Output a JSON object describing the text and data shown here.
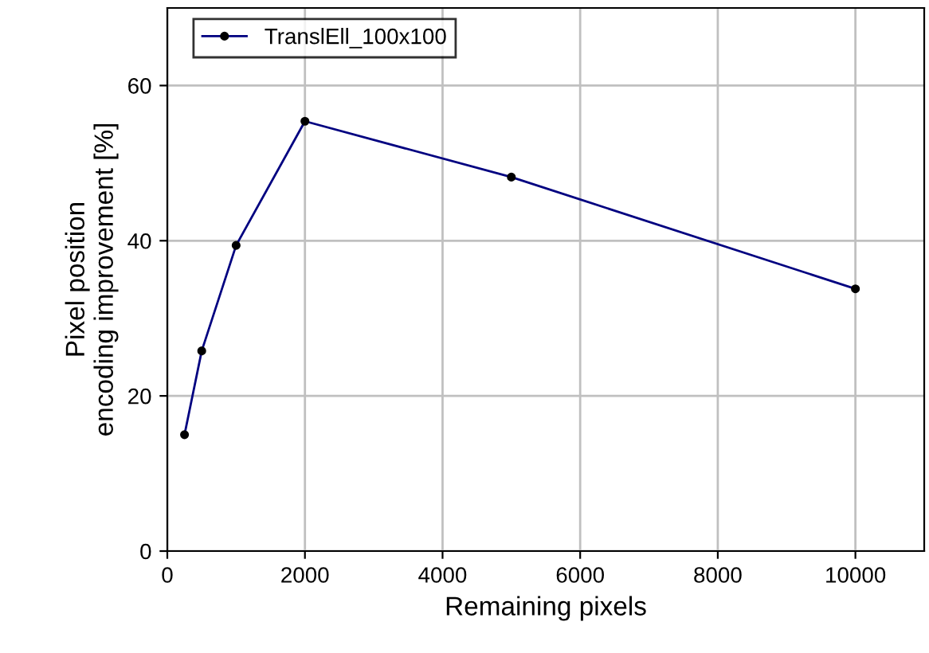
{
  "chart_data": {
    "type": "line",
    "xlabel": "Remaining pixels",
    "ylabel": "Pixel position\nencoding improvement [%]",
    "x": [
      250,
      500,
      1000,
      2000,
      5000,
      10000
    ],
    "series": [
      {
        "name": "TranslEll_100x100",
        "color": "#000080",
        "values": [
          15.0,
          25.8,
          39.4,
          55.4,
          48.2,
          33.8
        ]
      }
    ],
    "xlim": [
      0,
      11000
    ],
    "xticks": [
      0,
      2000,
      4000,
      6000,
      8000,
      10000
    ],
    "ylim": [
      0,
      70
    ],
    "yticks": [
      0,
      20,
      40,
      60
    ],
    "grid": true,
    "legend": "top left",
    "marker": "circle",
    "line_style": "solid"
  }
}
